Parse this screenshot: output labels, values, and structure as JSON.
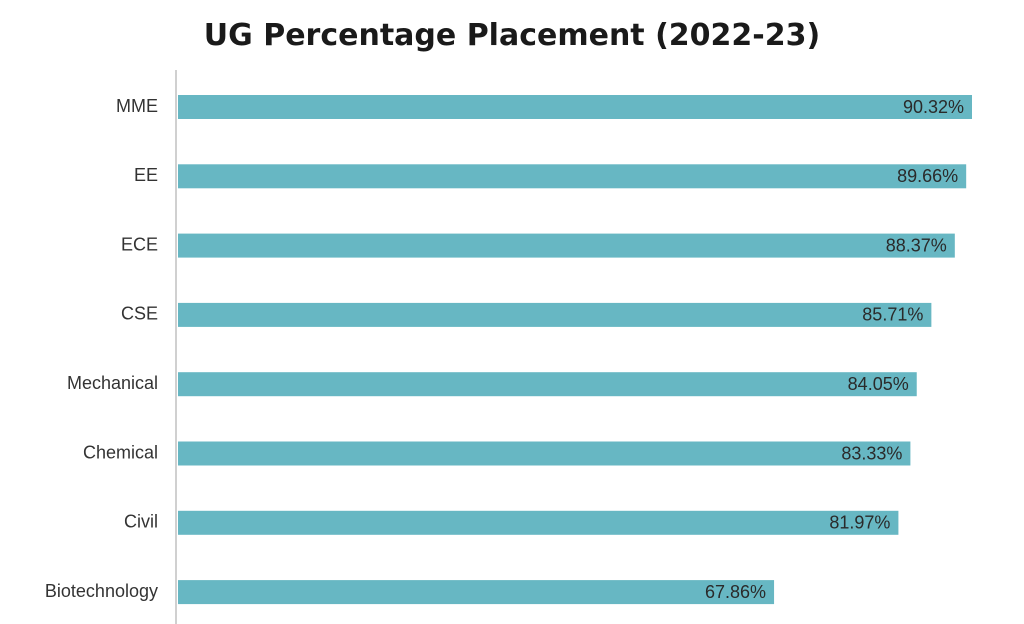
{
  "chart_data": {
    "type": "bar",
    "orientation": "horizontal",
    "title": "UG Percentage Placement (2022-23)",
    "categories": [
      "MME",
      "EE",
      "ECE",
      "CSE",
      "Mechanical",
      "Chemical",
      "Civil",
      "Biotechnology"
    ],
    "values": [
      90.32,
      89.66,
      88.37,
      85.71,
      84.05,
      83.33,
      81.97,
      67.86
    ],
    "data_labels": [
      "90.32%",
      "89.66%",
      "88.37%",
      "85.71%",
      "84.05%",
      "83.33%",
      "81.97%",
      "67.86%"
    ],
    "xlim": [
      0,
      90.32
    ],
    "xlabel": "",
    "ylabel": "",
    "grid": false,
    "legend": "none",
    "bar_color": "#67b7c3",
    "axis_color": "#d0d0d0"
  }
}
